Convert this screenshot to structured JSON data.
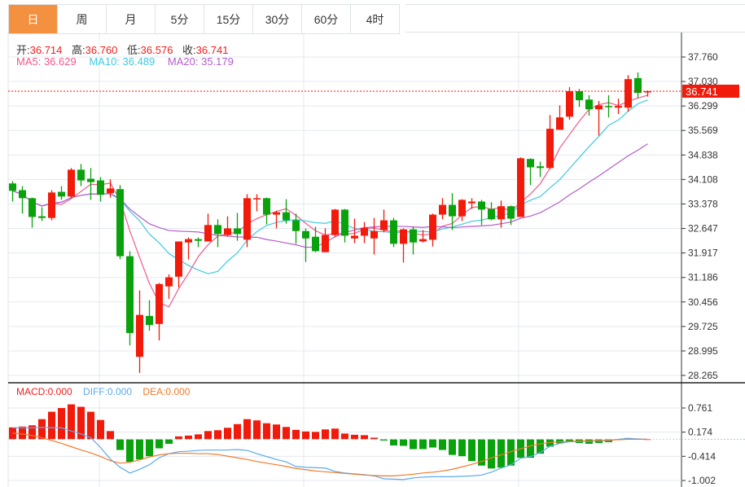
{
  "tabs": [
    {
      "label": "日",
      "active": true
    },
    {
      "label": "周"
    },
    {
      "label": "月"
    },
    {
      "label": "5分"
    },
    {
      "label": "15分"
    },
    {
      "label": "30分"
    },
    {
      "label": "60分"
    },
    {
      "label": "4时"
    }
  ],
  "ohlc_info": {
    "open_label": "开:",
    "open": "36.714",
    "high_label": "高:",
    "high": "36.760",
    "low_label": "低:",
    "low": "36.576",
    "close_label": "收:",
    "close": "36.741"
  },
  "ma_info": {
    "ma5": "MA5: 36.629",
    "ma10": "MA10: 36.489",
    "ma20": "MA20: 35.179"
  },
  "macd_info": {
    "macd": "MACD:0.000",
    "diff": "DIFF:0.000",
    "dea": "DEA:0.000"
  },
  "colors": {
    "up": "#f21a0a",
    "down": "#09a20c",
    "ma5": "#f2598a",
    "ma10": "#3fc9e0",
    "ma20": "#b45ccc",
    "diff": "#5aabf0",
    "dea": "#f27a2a",
    "accent": "#f39140"
  },
  "chart_data": [
    {
      "type": "candlestick",
      "title": "",
      "current_price": "36.741",
      "ylim": [
        28.12,
        38.4
      ],
      "y_ticks": [
        "37.760",
        "37.030",
        "36.299",
        "35.569",
        "34.838",
        "34.108",
        "33.378",
        "32.647",
        "31.917",
        "31.186",
        "30.456",
        "29.725",
        "28.995",
        "28.265"
      ],
      "ohlc": [
        [
          33.99,
          34.06,
          33.45,
          33.77
        ],
        [
          33.79,
          33.91,
          33.09,
          33.55
        ],
        [
          33.55,
          33.57,
          32.67,
          32.99
        ],
        [
          33.01,
          33.28,
          32.87,
          32.96
        ],
        [
          32.96,
          33.79,
          32.89,
          33.72
        ],
        [
          33.74,
          33.91,
          33.5,
          33.6
        ],
        [
          33.6,
          34.45,
          33.55,
          34.4
        ],
        [
          34.4,
          34.57,
          33.91,
          34.08
        ],
        [
          34.13,
          34.45,
          33.5,
          34.03
        ],
        [
          34.08,
          34.18,
          33.45,
          33.65
        ],
        [
          33.7,
          34.11,
          33.57,
          33.84
        ],
        [
          33.82,
          33.94,
          31.73,
          31.82
        ],
        [
          31.82,
          31.97,
          29.16,
          29.53
        ],
        [
          28.82,
          30.8,
          28.34,
          30.07
        ],
        [
          30.04,
          30.51,
          29.6,
          29.77
        ],
        [
          29.8,
          31.02,
          29.31,
          30.99
        ],
        [
          30.92,
          31.28,
          30.55,
          31.19
        ],
        [
          31.21,
          32.26,
          30.89,
          32.26
        ],
        [
          32.23,
          32.38,
          31.72,
          32.33
        ],
        [
          32.33,
          32.38,
          32.09,
          32.28
        ],
        [
          32.26,
          33.09,
          32.26,
          32.75
        ],
        [
          32.75,
          32.92,
          32.09,
          32.48
        ],
        [
          32.45,
          33.01,
          32.4,
          32.65
        ],
        [
          32.65,
          33.11,
          32.28,
          32.48
        ],
        [
          32.31,
          33.67,
          32.09,
          33.55
        ],
        [
          33.52,
          33.67,
          33.16,
          33.55
        ],
        [
          33.55,
          33.57,
          32.77,
          33.06
        ],
        [
          33.06,
          33.18,
          32.65,
          33.13
        ],
        [
          33.13,
          33.52,
          32.79,
          32.89
        ],
        [
          32.89,
          33.09,
          32.19,
          32.57
        ],
        [
          32.57,
          32.65,
          31.65,
          32.35
        ],
        [
          32.4,
          32.7,
          31.94,
          31.97
        ],
        [
          31.94,
          32.65,
          31.94,
          32.45
        ],
        [
          32.45,
          33.23,
          32.4,
          33.21
        ],
        [
          33.21,
          33.23,
          32.23,
          32.43
        ],
        [
          32.35,
          32.94,
          32.21,
          32.43
        ],
        [
          32.43,
          32.84,
          32.21,
          32.67
        ],
        [
          32.35,
          32.96,
          31.87,
          32.57
        ],
        [
          32.6,
          33.21,
          32.53,
          32.89
        ],
        [
          32.89,
          32.96,
          32.09,
          32.19
        ],
        [
          32.19,
          32.65,
          31.63,
          32.62
        ],
        [
          32.62,
          32.7,
          31.87,
          32.23
        ],
        [
          32.26,
          32.6,
          32.23,
          32.33
        ],
        [
          32.31,
          33.09,
          32.11,
          33.06
        ],
        [
          33.06,
          33.55,
          32.92,
          33.35
        ],
        [
          33.35,
          33.7,
          32.6,
          33.01
        ],
        [
          33.01,
          33.52,
          32.87,
          33.5
        ],
        [
          33.4,
          33.55,
          33.23,
          33.45
        ],
        [
          33.45,
          33.5,
          32.75,
          33.21
        ],
        [
          33.23,
          33.43,
          32.89,
          32.92
        ],
        [
          32.92,
          33.48,
          32.67,
          33.31
        ],
        [
          33.31,
          33.33,
          32.75,
          32.94
        ],
        [
          32.99,
          34.77,
          32.99,
          34.74
        ],
        [
          34.72,
          34.74,
          33.94,
          34.47
        ],
        [
          34.5,
          34.64,
          34.18,
          34.45
        ],
        [
          34.45,
          36.03,
          34.42,
          35.62
        ],
        [
          35.59,
          36.32,
          35.59,
          35.96
        ],
        [
          35.98,
          36.86,
          35.89,
          36.74
        ],
        [
          36.74,
          36.81,
          36.27,
          36.47
        ],
        [
          36.49,
          36.62,
          36.01,
          36.2
        ],
        [
          36.2,
          36.45,
          35.42,
          36.32
        ],
        [
          36.3,
          36.62,
          35.96,
          36.27
        ],
        [
          36.25,
          36.52,
          36.06,
          36.3
        ],
        [
          36.25,
          37.22,
          36.13,
          37.1
        ],
        [
          37.13,
          37.3,
          36.54,
          36.69
        ],
        [
          36.714,
          36.76,
          36.576,
          36.741
        ]
      ],
      "moving_averages": [
        "MA5",
        "MA10",
        "MA20"
      ]
    },
    {
      "type": "bar+line",
      "title": "MACD",
      "ylim": [
        -1.1,
        0.95
      ],
      "y_ticks": [
        "0.761",
        "0.174",
        "-0.414",
        "-1.002"
      ],
      "y_tick_values": [
        0.761,
        0.174,
        -0.414,
        -1.002
      ],
      "macd": [
        0.29,
        0.31,
        0.34,
        0.49,
        0.67,
        0.76,
        0.85,
        0.79,
        0.67,
        0.47,
        0.2,
        -0.26,
        -0.55,
        -0.49,
        -0.41,
        -0.22,
        -0.11,
        0.07,
        0.09,
        0.12,
        0.2,
        0.22,
        0.28,
        0.37,
        0.49,
        0.46,
        0.39,
        0.36,
        0.3,
        0.23,
        0.19,
        0.18,
        0.24,
        0.26,
        0.14,
        0.11,
        0.1,
        0.04,
        -0.03,
        -0.15,
        -0.16,
        -0.24,
        -0.24,
        -0.2,
        -0.26,
        -0.38,
        -0.41,
        -0.53,
        -0.64,
        -0.71,
        -0.69,
        -0.64,
        -0.45,
        -0.45,
        -0.35,
        -0.18,
        -0.1,
        -0.07,
        -0.09,
        -0.11,
        -0.09,
        -0.07,
        -0.02,
        0.03,
        0.01,
        0.0
      ],
      "diff": [
        0.28,
        0.28,
        0.28,
        0.29,
        0.28,
        0.28,
        0.2,
        0.13,
        0.04,
        -0.2,
        -0.48,
        -0.68,
        -0.82,
        -0.73,
        -0.62,
        -0.45,
        -0.35,
        -0.3,
        -0.29,
        -0.27,
        -0.26,
        -0.26,
        -0.26,
        -0.25,
        -0.27,
        -0.35,
        -0.42,
        -0.49,
        -0.55,
        -0.66,
        -0.68,
        -0.69,
        -0.7,
        -0.78,
        -0.82,
        -0.84,
        -0.86,
        -0.89,
        -0.96,
        -0.97,
        -0.98,
        -0.94,
        -0.92,
        -0.91,
        -0.91,
        -0.91,
        -0.9,
        -0.89,
        -0.87,
        -0.8,
        -0.7,
        -0.62,
        -0.46,
        -0.42,
        -0.32,
        -0.17,
        -0.1,
        -0.06,
        -0.05,
        -0.05,
        -0.04,
        -0.03,
        0.0,
        0.02,
        0.01,
        0.0
      ],
      "dea": [
        0.15,
        0.13,
        0.09,
        0.04,
        -0.03,
        -0.1,
        -0.18,
        -0.26,
        -0.33,
        -0.42,
        -0.52,
        -0.58,
        -0.56,
        -0.5,
        -0.43,
        -0.38,
        -0.35,
        -0.34,
        -0.34,
        -0.35,
        -0.35,
        -0.37,
        -0.41,
        -0.45,
        -0.49,
        -0.54,
        -0.58,
        -0.62,
        -0.66,
        -0.71,
        -0.74,
        -0.77,
        -0.79,
        -0.81,
        -0.83,
        -0.85,
        -0.87,
        -0.88,
        -0.89,
        -0.89,
        -0.87,
        -0.85,
        -0.82,
        -0.8,
        -0.77,
        -0.73,
        -0.67,
        -0.61,
        -0.54,
        -0.45,
        -0.38,
        -0.3,
        -0.23,
        -0.16,
        -0.11,
        -0.08,
        -0.06,
        -0.05,
        -0.04,
        -0.04,
        -0.03,
        -0.02,
        -0.01,
        0.0,
        0.0,
        0.0
      ]
    }
  ]
}
